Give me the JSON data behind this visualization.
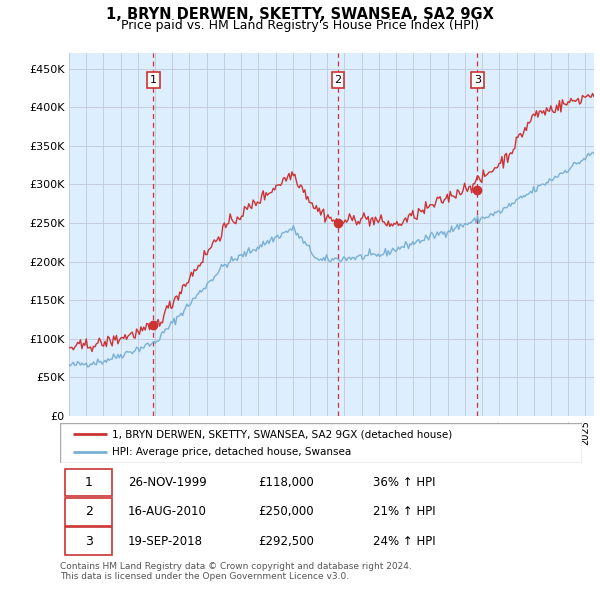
{
  "title": "1, BRYN DERWEN, SKETTY, SWANSEA, SA2 9GX",
  "subtitle": "Price paid vs. HM Land Registry's House Price Index (HPI)",
  "ylabel_ticks": [
    "£0",
    "£50K",
    "£100K",
    "£150K",
    "£200K",
    "£250K",
    "£300K",
    "£350K",
    "£400K",
    "£450K"
  ],
  "ytick_values": [
    0,
    50000,
    100000,
    150000,
    200000,
    250000,
    300000,
    350000,
    400000,
    450000
  ],
  "ylim": [
    0,
    470000
  ],
  "xlim_start": 1995.0,
  "xlim_end": 2025.5,
  "sale_dates": [
    1999.9,
    2010.62,
    2018.72
  ],
  "sale_prices": [
    118000,
    250000,
    292500
  ],
  "sale_labels": [
    "1",
    "2",
    "3"
  ],
  "red_line_color": "#cc3333",
  "blue_line_color": "#7ab0d4",
  "chart_bg_color": "#ddeeff",
  "vline_color": "#cc3333",
  "legend_red_label": "1, BRYN DERWEN, SKETTY, SWANSEA, SA2 9GX (detached house)",
  "legend_blue_label": "HPI: Average price, detached house, Swansea",
  "table_data": [
    [
      "1",
      "26-NOV-1999",
      "£118,000",
      "36% ↑ HPI"
    ],
    [
      "2",
      "16-AUG-2010",
      "£250,000",
      "21% ↑ HPI"
    ],
    [
      "3",
      "19-SEP-2018",
      "£292,500",
      "24% ↑ HPI"
    ]
  ],
  "footnote": "Contains HM Land Registry data © Crown copyright and database right 2024.\nThis data is licensed under the Open Government Licence v3.0.",
  "background_color": "#ffffff",
  "grid_color": "#c0c8d8"
}
